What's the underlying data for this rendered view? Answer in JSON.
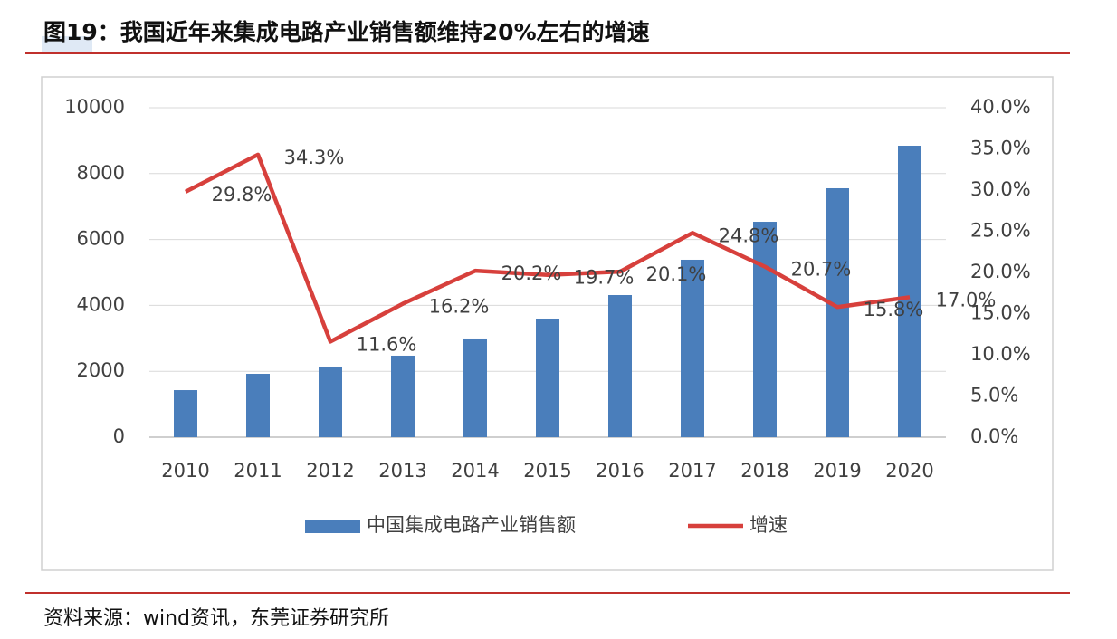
{
  "chart_data": {
    "type": "bar",
    "title": "图19：我国近年来集成电路产业销售额维持20%左右的增速",
    "source": "资料来源：wind资讯，东莞证券研究所",
    "categories": [
      "2010",
      "2011",
      "2012",
      "2013",
      "2014",
      "2015",
      "2016",
      "2017",
      "2018",
      "2019",
      "2020"
    ],
    "series": [
      {
        "name": "中国集成电路产业销售额",
        "type": "bar",
        "color": "#4a7ebb",
        "axis": "y",
        "values": [
          1428,
          1923,
          2143,
          2473,
          2995,
          3599,
          4313,
          5385,
          6538,
          7555,
          8846
        ]
      },
      {
        "name": "增速",
        "type": "line",
        "color": "#d7403c",
        "axis": "y2",
        "values": [
          29.8,
          34.3,
          11.6,
          16.2,
          20.2,
          19.7,
          20.1,
          24.8,
          20.7,
          15.8,
          17.0
        ],
        "value_labels": [
          "29.8%",
          "34.3%",
          "11.6%",
          "16.2%",
          "20.2%",
          "19.7%",
          "20.1%",
          "24.8%",
          "20.7%",
          "15.8%",
          "17.0%"
        ]
      }
    ],
    "ylim": [
      0,
      10000
    ],
    "yticks": [
      0,
      2000,
      4000,
      6000,
      8000,
      10000
    ],
    "y2lim": [
      0,
      40
    ],
    "y2ticks": [
      {
        "value": 0,
        "label": "0.0%"
      },
      {
        "value": 5,
        "label": "5.0%"
      },
      {
        "value": 10,
        "label": "10.0%"
      },
      {
        "value": 15,
        "label": "15.0%"
      },
      {
        "value": 20,
        "label": "20.0%"
      },
      {
        "value": 25,
        "label": "25.0%"
      },
      {
        "value": 30,
        "label": "30.0%"
      },
      {
        "value": 35,
        "label": "35.0%"
      },
      {
        "value": 40,
        "label": "40.0%"
      }
    ],
    "grid": true,
    "legend": "bottom"
  }
}
